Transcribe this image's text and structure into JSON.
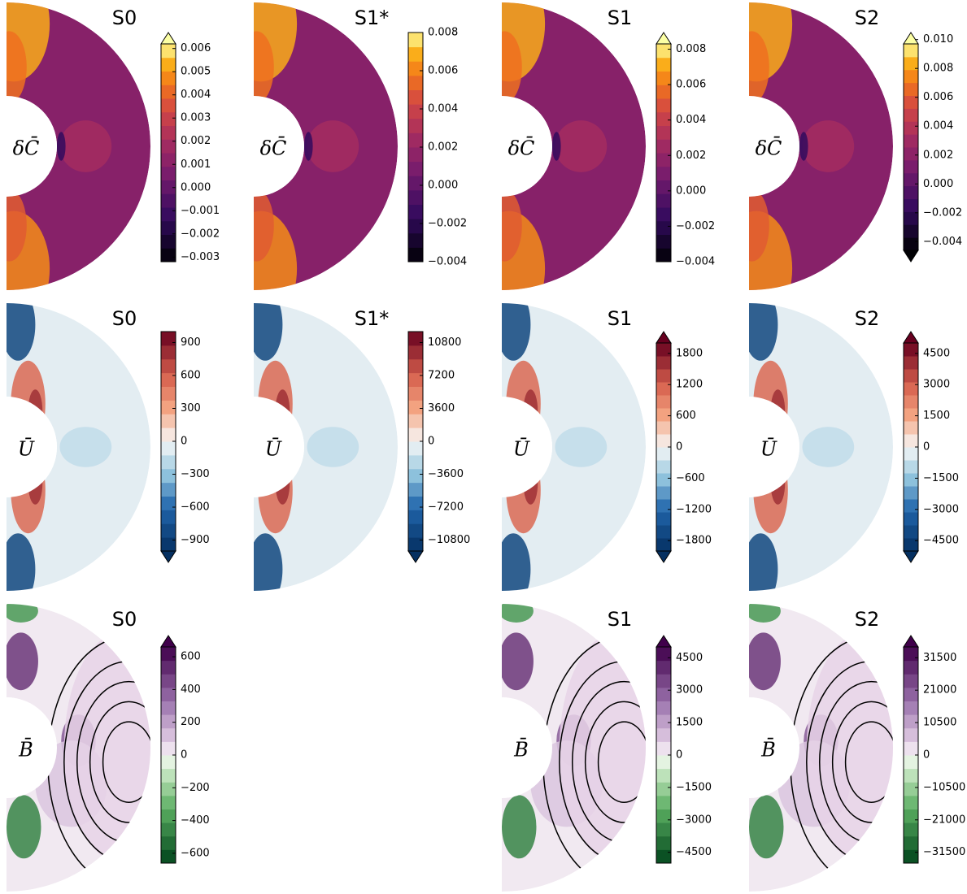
{
  "rows": [
    {
      "panels": [
        {
          "title": "S0",
          "label": "δC̄",
          "cbar": {
            "colormap": "inferno",
            "extend": "max",
            "lim": [
              -0.0032,
              0.0062
            ],
            "ticks": [
              0.006,
              0.005,
              0.004,
              0.003,
              0.002,
              0.001,
              {
                "value": 0,
                "label": "0.000"
              },
              {
                "value": -0.001,
                "label": "−0.001"
              },
              {
                "value": -0.002,
                "label": "−0.002"
              },
              {
                "value": -0.003,
                "label": "−0.003"
              }
            ]
          }
        },
        {
          "title": "S1*",
          "label": "δC̄",
          "cbar": {
            "colormap": "inferno",
            "extend": "neither",
            "lim": [
              -0.004,
              0.008
            ],
            "ticks": [
              0.008,
              0.006,
              0.004,
              0.002,
              {
                "value": 0,
                "label": "0.000"
              },
              {
                "value": -0.002,
                "label": "−0.002"
              },
              {
                "value": -0.004,
                "label": "−0.004"
              }
            ]
          }
        },
        {
          "title": "S1",
          "label": "δC̄",
          "cbar": {
            "colormap": "inferno",
            "extend": "max",
            "lim": [
              -0.004,
              0.0083
            ],
            "ticks": [
              0.008,
              0.006,
              0.004,
              0.002,
              {
                "value": 0,
                "label": "0.000"
              },
              {
                "value": -0.002,
                "label": "−0.002"
              },
              {
                "value": -0.004,
                "label": "−0.004"
              }
            ]
          }
        },
        {
          "title": "S2",
          "label": "δC̄",
          "cbar": {
            "colormap": "inferno",
            "extend": "both",
            "lim": [
              -0.0046,
              0.0097
            ],
            "ticks": [
              {
                "value": 0.01,
                "label": "0.010"
              },
              0.008,
              0.006,
              0.004,
              0.002,
              {
                "value": 0,
                "label": "0.000"
              },
              {
                "value": -0.002,
                "label": "−0.002"
              },
              {
                "value": -0.004,
                "label": "−0.004"
              }
            ]
          }
        }
      ]
    },
    {
      "panels": [
        {
          "title": "S0",
          "label": "Ū",
          "cbar": {
            "colormap": "RdBu_r",
            "extend": "min",
            "lim": [
              -1000,
              1000
            ],
            "ticks": [
              900,
              600,
              300,
              0,
              {
                "value": -300,
                "label": "−300"
              },
              {
                "value": -600,
                "label": "−600"
              },
              {
                "value": -900,
                "label": "−900"
              }
            ]
          }
        },
        {
          "title": "S1*",
          "label": "Ū",
          "cbar": {
            "colormap": "RdBu_r",
            "extend": "min",
            "lim": [
              -12000,
              12000
            ],
            "ticks": [
              10800,
              7200,
              3600,
              0,
              {
                "value": -3600,
                "label": "−3600"
              },
              {
                "value": -7200,
                "label": "−7200"
              },
              {
                "value": -10800,
                "label": "−10800"
              }
            ]
          }
        },
        {
          "title": "S1",
          "label": "Ū",
          "cbar": {
            "colormap": "RdBu_r",
            "extend": "both",
            "lim": [
              -2000,
              2000
            ],
            "ticks": [
              1800,
              1200,
              600,
              0,
              {
                "value": -600,
                "label": "−600"
              },
              {
                "value": -1200,
                "label": "−1200"
              },
              {
                "value": -1800,
                "label": "−1800"
              }
            ]
          }
        },
        {
          "title": "S2",
          "label": "Ū",
          "cbar": {
            "colormap": "RdBu_r",
            "extend": "both",
            "lim": [
              -5000,
              5000
            ],
            "ticks": [
              4500,
              3000,
              1500,
              0,
              {
                "value": -1500,
                "label": "−1500"
              },
              {
                "value": -3000,
                "label": "−3000"
              },
              {
                "value": -4500,
                "label": "−4500"
              }
            ]
          }
        }
      ]
    },
    {
      "panels": [
        {
          "title": "S0",
          "label": "B̄",
          "cbar": {
            "colormap": "PRGn",
            "extend": "max",
            "lim": [
              -660,
              660
            ],
            "ticks": [
              600,
              400,
              200,
              0,
              {
                "value": -200,
                "label": "−200"
              },
              {
                "value": -400,
                "label": "−400"
              },
              {
                "value": -600,
                "label": "−600"
              }
            ]
          }
        },
        null,
        {
          "title": "S1",
          "label": "B̄",
          "cbar": {
            "colormap": "PRGn",
            "extend": "max",
            "lim": [
              -5000,
              5000
            ],
            "ticks": [
              4500,
              3000,
              1500,
              0,
              {
                "value": -1500,
                "label": "−1500"
              },
              {
                "value": -3000,
                "label": "−3000"
              },
              {
                "value": -4500,
                "label": "−4500"
              }
            ]
          }
        },
        {
          "title": "S2",
          "label": "B̄",
          "cbar": {
            "colormap": "PRGn",
            "extend": "max",
            "lim": [
              -35000,
              35000
            ],
            "ticks": [
              31500,
              21000,
              10500,
              0,
              {
                "value": -10500,
                "label": "−10500"
              },
              {
                "value": -21000,
                "label": "−21000"
              },
              {
                "value": -31500,
                "label": "−31500"
              }
            ]
          }
        }
      ]
    }
  ]
}
